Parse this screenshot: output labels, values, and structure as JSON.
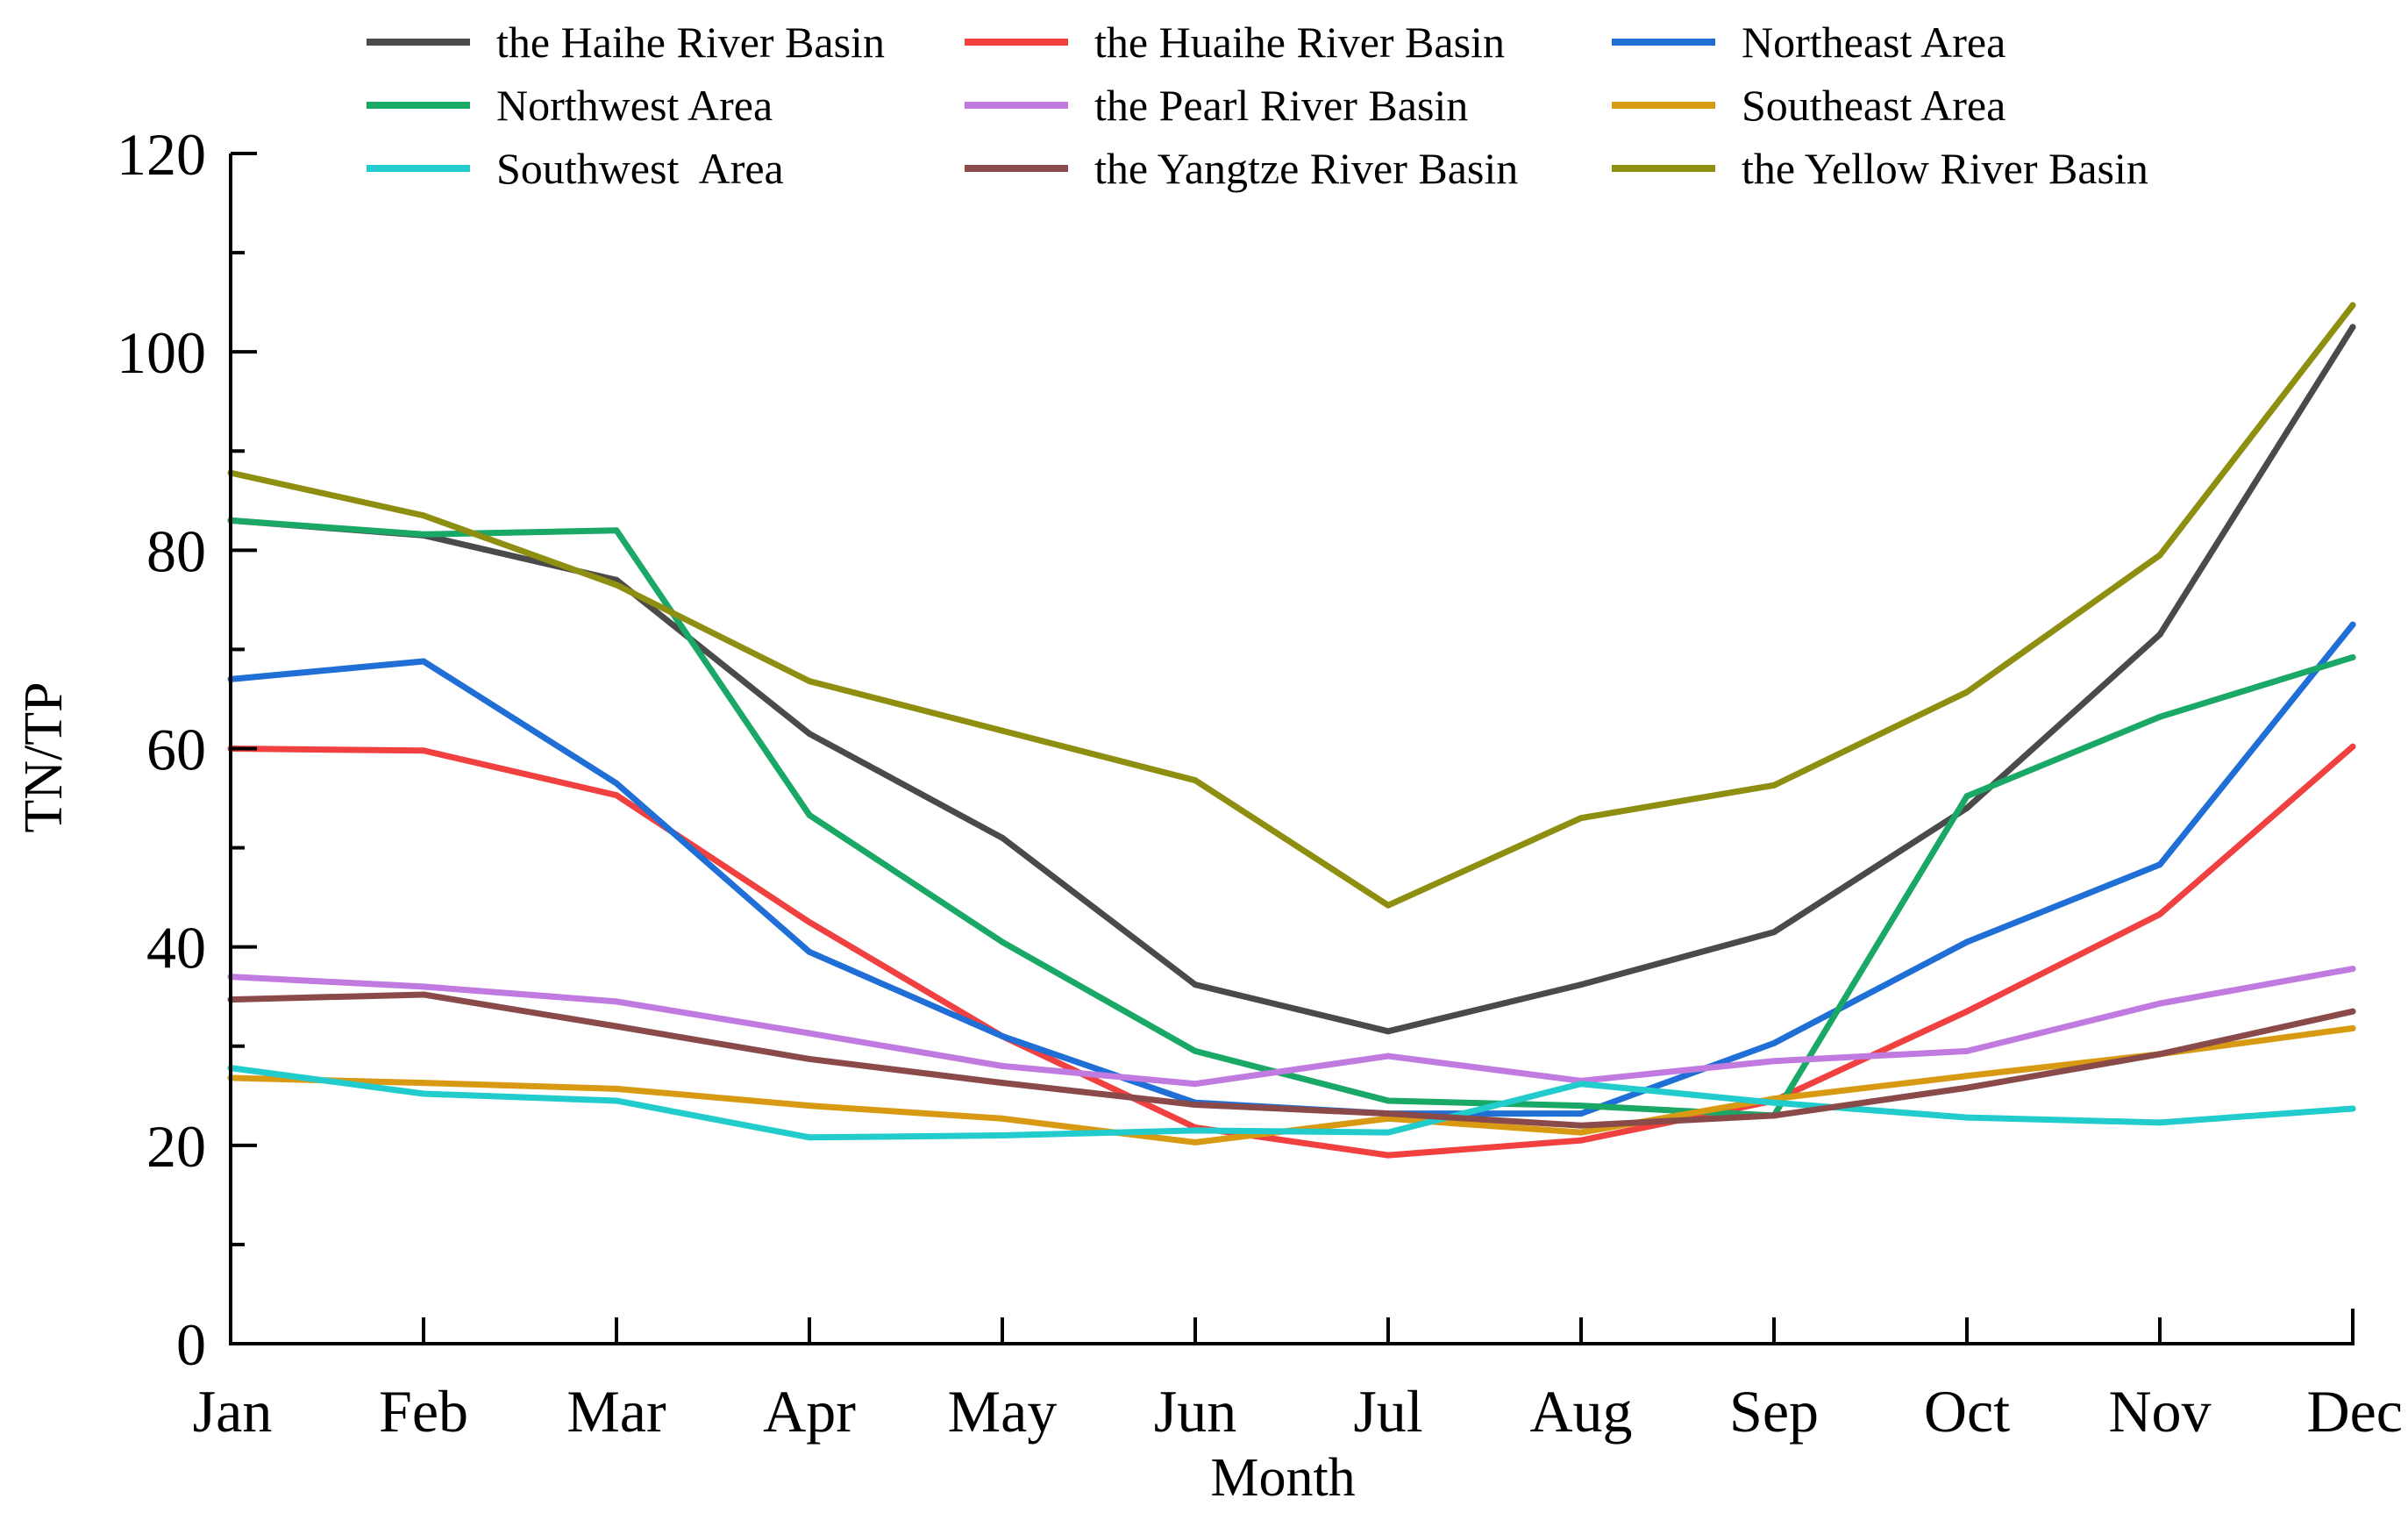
{
  "chart_data": {
    "type": "line",
    "title": "",
    "xlabel": "Month",
    "ylabel": "TN/TP",
    "ylim": [
      0,
      120
    ],
    "yticks": [
      0,
      20,
      40,
      60,
      80,
      100,
      120
    ],
    "y_minor_step": 10,
    "grid": false,
    "legend_position": "top",
    "categories": [
      "Jan",
      "Feb",
      "Mar",
      "Apr",
      "May",
      "Jun",
      "Jul",
      "Aug",
      "Sep",
      "Oct",
      "Nov",
      "Dec"
    ],
    "series": [
      {
        "name": "the Haihe River Basin",
        "color": "#4a4a4a",
        "values": [
          83.0,
          81.5,
          77.0,
          61.5,
          51.0,
          36.2,
          31.5,
          36.2,
          41.5,
          54.0,
          71.5,
          102.5
        ]
      },
      {
        "name": "the Huaihe River Basin",
        "color": "#f04040",
        "values": [
          60.0,
          59.8,
          55.3,
          42.5,
          31.0,
          21.8,
          19.0,
          20.5,
          24.5,
          33.5,
          43.3,
          60.2
        ]
      },
      {
        "name": "Northeast Area",
        "color": "#1f6fd6",
        "values": [
          67.0,
          68.8,
          56.5,
          39.5,
          31.0,
          24.3,
          23.2,
          23.2,
          30.3,
          40.5,
          48.3,
          72.5
        ]
      },
      {
        "name": "Northwest Area",
        "color": "#1aa866",
        "values": [
          83.0,
          81.6,
          82.0,
          53.3,
          40.5,
          29.5,
          24.5,
          24.0,
          23.0,
          55.2,
          63.2,
          69.2
        ]
      },
      {
        "name": "the Pearl River Basin",
        "color": "#c07ae0",
        "values": [
          37.0,
          36.0,
          34.5,
          31.3,
          28.0,
          26.2,
          29.0,
          26.5,
          28.5,
          29.5,
          34.3,
          37.8
        ]
      },
      {
        "name": "Southeast Area",
        "color": "#d89a12",
        "values": [
          26.8,
          26.3,
          25.7,
          24.0,
          22.7,
          20.3,
          22.7,
          21.3,
          24.7,
          27.0,
          29.2,
          31.8
        ]
      },
      {
        "name": "Southwest  Area",
        "color": "#22cccc",
        "values": [
          27.8,
          25.2,
          24.5,
          20.8,
          21.0,
          21.5,
          21.3,
          26.2,
          24.3,
          22.8,
          22.3,
          23.7
        ]
      },
      {
        "name": "the Yangtze River Basin",
        "color": "#8b4a4a",
        "values": [
          34.7,
          35.2,
          32.0,
          28.7,
          26.3,
          24.1,
          23.2,
          22.0,
          23.0,
          25.8,
          29.2,
          33.5
        ]
      },
      {
        "name": "the Yellow River Basin",
        "color": "#8e8e10",
        "values": [
          87.8,
          83.5,
          76.5,
          66.8,
          61.8,
          56.8,
          44.2,
          53.0,
          56.3,
          65.7,
          79.5,
          104.7
        ]
      }
    ]
  }
}
